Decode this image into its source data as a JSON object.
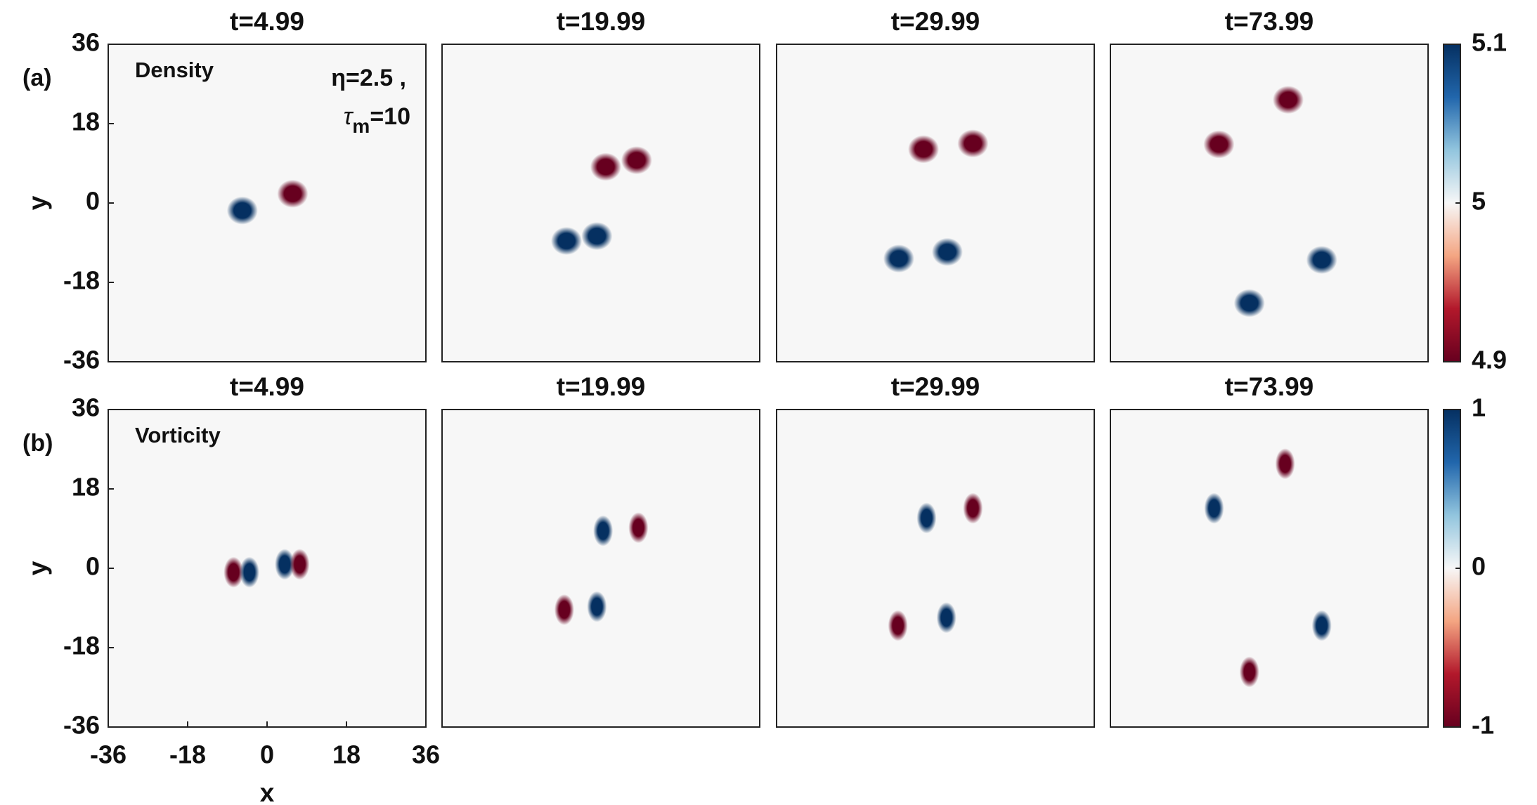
{
  "chart_data": [
    {
      "type": "heatmap",
      "label": "(a)",
      "field": "Density",
      "annotation_eta": "η=2.5 ,",
      "annotation_tau": {
        "symbol": "τ",
        "sub": "m",
        "value": "=10"
      },
      "ylabel": "y",
      "xlim": [
        -36,
        36
      ],
      "ylim": [
        -36,
        36
      ],
      "yticks": [
        -36,
        -18,
        0,
        18,
        36
      ],
      "colormap": [
        "#67001f",
        "#b2182b",
        "#f4a582",
        "#f7f7f7",
        "#92c5de",
        "#2166ac",
        "#053061"
      ],
      "colorbar": {
        "lim": [
          4.9,
          5.1
        ],
        "ticks": [
          4.9,
          5,
          5.1
        ]
      },
      "panels": [
        {
          "title": "t=4.99",
          "blobs": [
            {
              "x": -5.6,
              "y": -1.7,
              "value": 5.1
            },
            {
              "x": 5.8,
              "y": 2.1,
              "value": 4.9
            }
          ]
        },
        {
          "title": "t=19.99",
          "blobs": [
            {
              "x": 1.1,
              "y": 8.2,
              "value": 4.9
            },
            {
              "x": 8.1,
              "y": 9.7,
              "value": 4.9
            },
            {
              "x": -7.8,
              "y": -8.6,
              "value": 5.1
            },
            {
              "x": -0.9,
              "y": -7.5,
              "value": 5.1
            }
          ]
        },
        {
          "title": "t=29.99",
          "blobs": [
            {
              "x": -2.7,
              "y": 12.2,
              "value": 4.9
            },
            {
              "x": 8.5,
              "y": 13.5,
              "value": 4.9
            },
            {
              "x": -8.3,
              "y": -12.6,
              "value": 5.1
            },
            {
              "x": 2.7,
              "y": -11.1,
              "value": 5.1
            }
          ]
        },
        {
          "title": "t=73.99",
          "blobs": [
            {
              "x": -11.4,
              "y": 13.3,
              "value": 4.9
            },
            {
              "x": 4.3,
              "y": 23.4,
              "value": 4.9
            },
            {
              "x": 11.9,
              "y": -12.9,
              "value": 5.1
            },
            {
              "x": -4.5,
              "y": -22.7,
              "value": 5.1
            }
          ]
        }
      ]
    },
    {
      "type": "heatmap",
      "label": "(b)",
      "field": "Vorticity",
      "xlabel": "x",
      "ylabel": "y",
      "xlim": [
        -36,
        36
      ],
      "ylim": [
        -36,
        36
      ],
      "xticks": [
        -36,
        -18,
        0,
        18,
        36
      ],
      "yticks": [
        -36,
        -18,
        0,
        18,
        36
      ],
      "colormap": [
        "#67001f",
        "#b2182b",
        "#f4a582",
        "#f7f7f7",
        "#92c5de",
        "#2166ac",
        "#053061"
      ],
      "colorbar": {
        "lim": [
          -1,
          1
        ],
        "ticks": [
          -1,
          0,
          1
        ]
      },
      "panels": [
        {
          "title": "t=4.99",
          "blobs": [
            {
              "x": -7.6,
              "y": -0.9,
              "value": -1
            },
            {
              "x": -4,
              "y": -0.9,
              "value": 1
            },
            {
              "x": 4,
              "y": 0.9,
              "value": 1
            },
            {
              "x": 7.4,
              "y": 0.9,
              "value": -1
            }
          ]
        },
        {
          "title": "t=19.99",
          "blobs": [
            {
              "x": 0.5,
              "y": 8.5,
              "value": 1
            },
            {
              "x": 8.5,
              "y": 9.2,
              "value": -1
            },
            {
              "x": -8.3,
              "y": -9.4,
              "value": -1
            },
            {
              "x": -0.9,
              "y": -8.7,
              "value": 1
            }
          ]
        },
        {
          "title": "t=29.99",
          "blobs": [
            {
              "x": -2,
              "y": 11.4,
              "value": 1
            },
            {
              "x": 8.5,
              "y": 13.6,
              "value": -1
            },
            {
              "x": -8.5,
              "y": -13,
              "value": -1
            },
            {
              "x": 2.5,
              "y": -11.2,
              "value": 1
            }
          ]
        },
        {
          "title": "t=73.99",
          "blobs": [
            {
              "x": 3.6,
              "y": 23.7,
              "value": -1
            },
            {
              "x": -12.5,
              "y": 13.6,
              "value": 1
            },
            {
              "x": 11.9,
              "y": -13,
              "value": 1
            },
            {
              "x": -4.5,
              "y": -23.5,
              "value": -1
            }
          ]
        }
      ]
    }
  ]
}
